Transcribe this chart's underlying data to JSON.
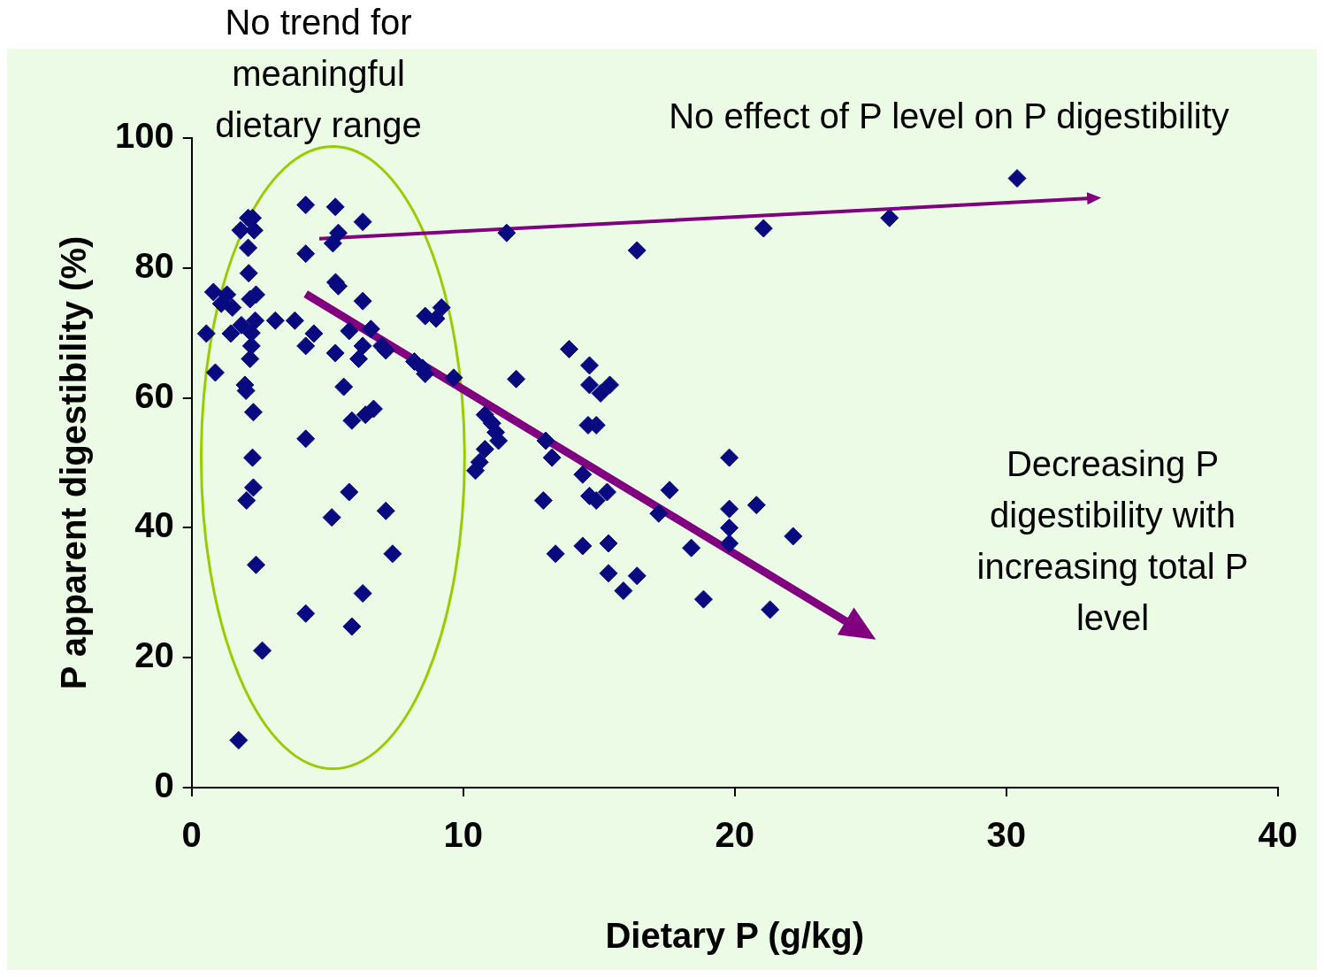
{
  "chart_data": {
    "type": "scatter",
    "xlabel": "Dietary P (g/kg)",
    "ylabel": "P apparent digestibility (%)",
    "annotations": [
      "No trend for meaningful dietary range",
      "No effect of P level on P digestibility",
      "Decreasing P digestibility with increasing total P level"
    ],
    "xlim": [
      0,
      40
    ],
    "xticks": [
      0,
      10,
      20,
      30,
      40
    ],
    "ylim": [
      0,
      100
    ],
    "yticks": [
      0,
      20,
      40,
      60,
      80,
      100
    ],
    "grid": false,
    "legend": false,
    "marker": "diamond",
    "series": [
      {
        "color": "#0a0a80",
        "x": [
          0.54,
          0.8,
          0.87,
          1.09,
          1.3,
          1.44,
          1.5,
          1.73,
          1.8,
          1.83,
          1.96,
          2.0,
          2.02,
          2.08,
          2.08,
          2.1,
          2.15,
          2.15,
          2.2,
          2.2,
          2.24,
          2.24,
          2.27,
          2.27,
          2.3,
          2.34,
          2.37,
          2.37,
          2.6,
          3.08,
          3.8,
          4.2,
          4.2,
          4.2,
          4.2,
          4.2,
          4.5,
          5.16,
          5.29,
          5.29,
          5.2,
          5.4,
          5.3,
          5.4,
          5.6,
          5.8,
          5.8,
          5.9,
          5.9,
          6.15,
          6.3,
          6.3,
          6.3,
          6.3,
          6.4,
          6.6,
          6.7,
          7.0,
          7.15,
          7.15,
          7.4,
          8.2,
          8.5,
          8.6,
          8.6,
          9.0,
          9.2,
          9.65,
          10.45,
          10.6,
          10.8,
          10.8,
          11.06,
          11.2,
          11.3,
          11.6,
          11.95,
          12.95,
          13.04,
          13.27,
          13.4,
          13.9,
          14.4,
          14.4,
          14.65,
          14.65,
          14.6,
          14.65,
          14.9,
          14.9,
          15.06,
          15.4,
          15.35,
          15.35,
          15.3,
          15.9,
          16.4,
          16.4,
          17.2,
          17.6,
          18.4,
          18.85,
          19.8,
          19.8,
          19.8,
          19.8,
          20.8,
          21.06,
          21.3,
          22.15,
          25.7,
          30.4
        ],
        "values": [
          69.9,
          76.3,
          63.9,
          74.5,
          75.9,
          69.9,
          73.9,
          7.3,
          85.8,
          71.2,
          62,
          61.1,
          44.2,
          87.7,
          83.1,
          79.2,
          66,
          75.2,
          68,
          70,
          87.7,
          50.8,
          57.8,
          46.2,
          85.8,
          71.9,
          75.9,
          34.3,
          21.1,
          71.9,
          71.9,
          89.7,
          82.2,
          68,
          53.7,
          26.8,
          69.9,
          41.6,
          89.4,
          66.9,
          83.8,
          85.4,
          77.8,
          77.2,
          61.7,
          70.3,
          45.5,
          24.8,
          56.5,
          66,
          74.9,
          87.1,
          68,
          29.9,
          57.4,
          70.6,
          58.3,
          68,
          67.3,
          42.6,
          36,
          65.6,
          64.6,
          72.6,
          63.7,
          72.2,
          73.9,
          63.1,
          48.8,
          50.1,
          57.4,
          52.1,
          56.1,
          54.7,
          53.4,
          85.4,
          62.9,
          44.2,
          53.4,
          50.8,
          36,
          67.5,
          48.2,
          37.2,
          65,
          62,
          55.8,
          44.9,
          55.8,
          44.2,
          60.7,
          62,
          37.6,
          33,
          45.5,
          30.3,
          82.7,
          32.6,
          42.2,
          45.8,
          36.9,
          29,
          50.8,
          42.9,
          40,
          37.6,
          43.5,
          86.1,
          27.4,
          38.7,
          87.7,
          93.8
        ]
      }
    ]
  }
}
